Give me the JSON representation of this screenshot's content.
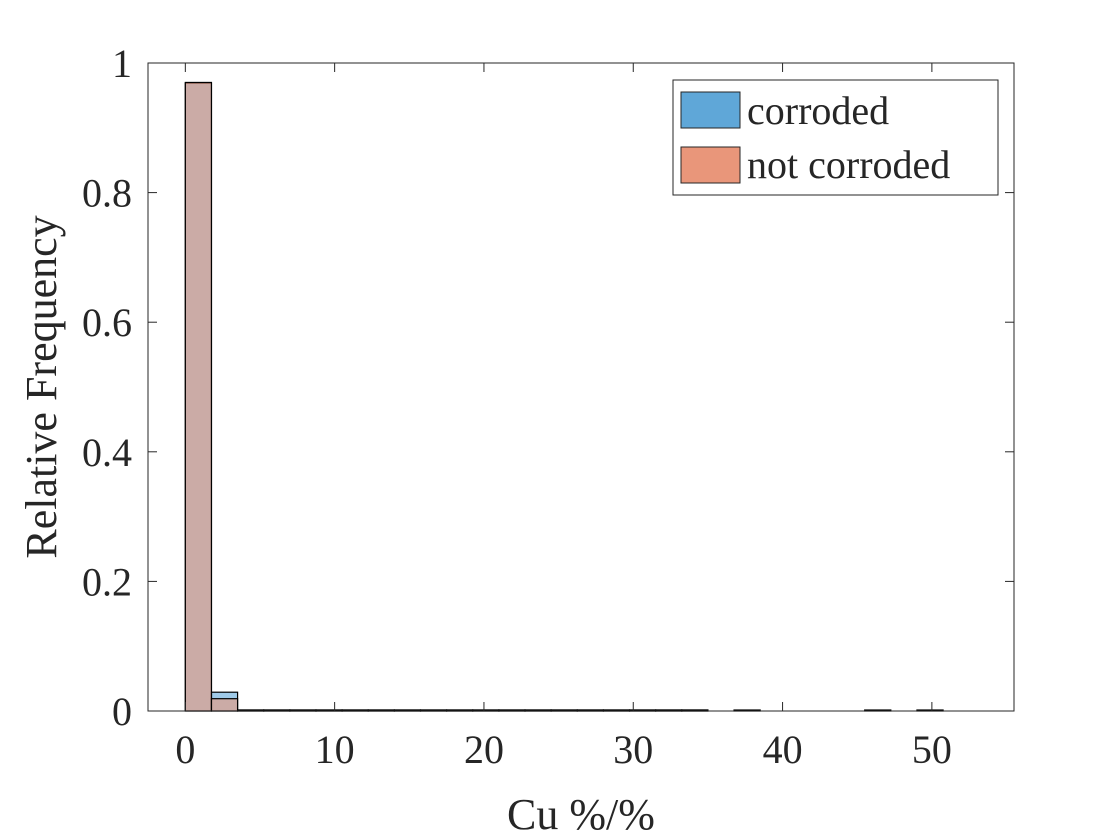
{
  "chart_data": {
    "type": "bar",
    "xlabel": "Cu %/%",
    "ylabel": "Relative Frequency",
    "xlim": [
      -2.5,
      55.5
    ],
    "ylim": [
      0,
      1
    ],
    "xticks": [
      0,
      10,
      20,
      30,
      40,
      50
    ],
    "yticks": [
      0,
      0.2,
      0.4,
      0.6,
      0.8,
      1
    ],
    "xtick_labels": [
      "0",
      "10",
      "20",
      "30",
      "40",
      "50"
    ],
    "ytick_labels": [
      "0",
      "0.2",
      "0.4",
      "0.6",
      "0.8",
      "1"
    ],
    "bin_width": 1.75,
    "bin_edges": [
      0,
      1.75,
      3.5,
      5.25,
      7,
      8.75,
      10.5,
      12.25,
      14,
      15.75,
      17.5,
      19.25,
      21,
      22.75,
      24.5,
      26.25,
      28,
      29.75,
      31.5,
      33.25,
      35,
      36.75,
      38.5,
      40.25,
      42,
      43.75,
      45.5,
      47.25,
      49,
      50.75,
      52.5
    ],
    "series": [
      {
        "name": "corroded",
        "color": "#5fa7d8",
        "values": [
          0.969,
          0.029,
          0.001,
          0.001,
          0.0005,
          0.0005,
          0.0005,
          0.0005,
          0.0005,
          0.0005,
          0.0005,
          0.0005,
          0.0005,
          0.0005,
          0.0005,
          0.0005,
          0.0005,
          0.0005,
          0.0005,
          0.0005,
          0,
          0.0005,
          0,
          0,
          0,
          0,
          0.0005,
          0,
          0.0005,
          0
        ]
      },
      {
        "name": "not corroded",
        "color": "#e9967a",
        "values": [
          0.97,
          0.019,
          0.001,
          0.0005,
          0.0005,
          0.0005,
          0.0005,
          0.0005,
          0.0005,
          0.0005,
          0.0005,
          0.0005,
          0.0005,
          0.0005,
          0.0005,
          0.0005,
          0.0005,
          0.0005,
          0.0005,
          0.0005,
          0,
          0,
          0,
          0,
          0,
          0,
          0,
          0,
          0,
          0
        ]
      }
    ],
    "overlap_color": "#ab7563",
    "bar_alpha": 0.6,
    "legend_position": "top-right",
    "grid": false
  }
}
